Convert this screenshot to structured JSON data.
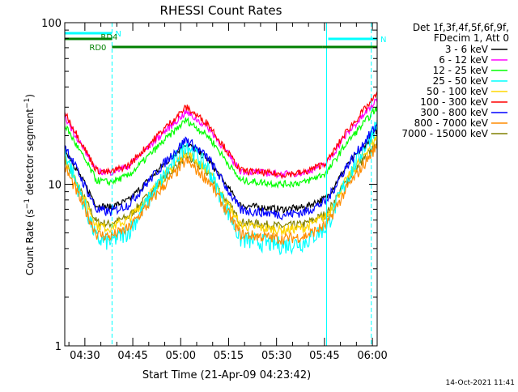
{
  "chart_data": {
    "type": "line",
    "title": "RHESSI Count Rates",
    "xlabel": "Start Time (21-Apr-09 04:23:42)",
    "ylabel_main": "Count Rate (s",
    "ylabel_sup1": "−1",
    "ylabel_mid": " detector segment",
    "ylabel_sup2": "−1",
    "ylabel_end": ")",
    "y_scale": "log",
    "ylim": [
      1,
      100
    ],
    "xlim": [
      "04:23:42",
      "06:01:30"
    ],
    "x_ticks": [
      "04:30",
      "04:45",
      "05:00",
      "05:15",
      "05:30",
      "05:45",
      "06:00"
    ],
    "y_ticks": [
      "1",
      "10",
      "100"
    ],
    "legend_header": [
      "Det 1f,3f,4f,5f,6f,9f,",
      "FDecim 1, Att 0"
    ],
    "legend_position": "right",
    "series": [
      {
        "name": "3 - 6 keV",
        "color": "#000000"
      },
      {
        "name": "6 - 12 keV",
        "color": "#ff00ff"
      },
      {
        "name": "12 - 25 keV",
        "color": "#00ff00"
      },
      {
        "name": "25 - 50 keV",
        "color": "#00ffff"
      },
      {
        "name": "50 - 100 keV",
        "color": "#ffd700"
      },
      {
        "name": "100 - 300 keV",
        "color": "#ff0000"
      },
      {
        "name": "300 - 800 keV",
        "color": "#0000ff"
      },
      {
        "name": "800 - 7000 keV",
        "color": "#ff8c00"
      },
      {
        "name": "7000 - 15000 keV",
        "color": "#808000"
      }
    ],
    "annotations": [
      {
        "text": "N",
        "color": "#00ffff",
        "interval": [
          "04:23:42",
          "04:38:30"
        ]
      },
      {
        "text": "N",
        "color": "#00ffff",
        "interval": [
          "05:45:40",
          "06:01:30"
        ]
      },
      {
        "text": "RD0",
        "color": "#008000",
        "interval": [
          "04:38:30",
          "05:44:30"
        ]
      },
      {
        "text": "RD4",
        "color": "#008000",
        "interval": [
          "04:23:42",
          "04:38:30"
        ]
      },
      {
        "text": "",
        "color": "#008000",
        "interval": [
          "05:44:30",
          "06:01:30"
        ]
      }
    ],
    "vertical_markers": [
      {
        "time": "04:38:30",
        "style": "dashed",
        "color": "#00ffff"
      },
      {
        "time": "05:45:40",
        "style": "solid",
        "color": "#00ffff"
      },
      {
        "time": "05:59:40",
        "style": "dashed",
        "color": "#00ffff"
      }
    ]
  },
  "footer_timestamp": "14-Oct-2021 11:41"
}
